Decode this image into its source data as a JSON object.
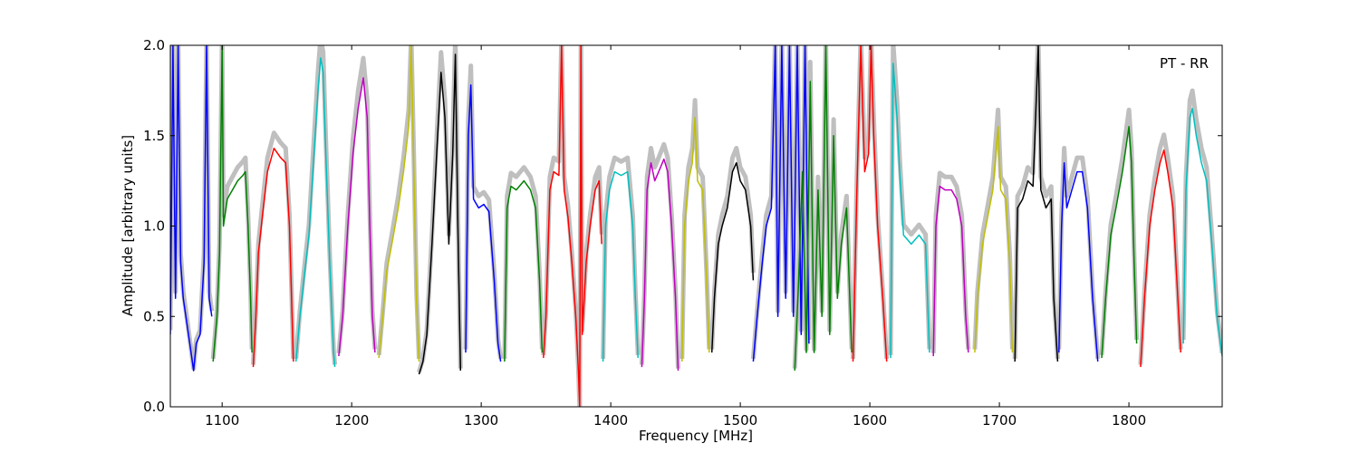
{
  "chart_data": {
    "type": "line",
    "title": "",
    "annotation": "PT - RR",
    "xlabel": "Frequency [MHz]",
    "ylabel": "Amplitude [arbitrary units]",
    "xlim": [
      1060,
      1872
    ],
    "ylim": [
      0.0,
      2.0
    ],
    "xticks": [
      1100,
      1200,
      1300,
      1400,
      1500,
      1600,
      1700,
      1800
    ],
    "yticks": [
      0.0,
      0.5,
      1.0,
      1.5,
      2.0
    ],
    "grid": false,
    "legend": "none",
    "background_series": {
      "color": "#bfbfbf",
      "description_visible": false
    },
    "series": [
      {
        "color": "#0000ff",
        "points": [
          [
            1060,
            0.4
          ],
          [
            1062,
            2.0
          ],
          [
            1064,
            0.6
          ],
          [
            1066,
            2.0
          ],
          [
            1068,
            0.8
          ],
          [
            1070,
            0.6
          ],
          [
            1073,
            0.45
          ],
          [
            1076,
            0.3
          ],
          [
            1078,
            0.2
          ],
          [
            1080,
            0.35
          ],
          [
            1083,
            0.4
          ],
          [
            1086,
            0.8
          ],
          [
            1088,
            2.0
          ],
          [
            1090,
            0.6
          ],
          [
            1092,
            0.5
          ]
        ]
      },
      {
        "color": "#008000",
        "points": [
          [
            1093,
            0.25
          ],
          [
            1096,
            0.5
          ],
          [
            1098,
            0.85
          ],
          [
            1100,
            2.0
          ],
          [
            1101,
            1.0
          ],
          [
            1104,
            1.15
          ],
          [
            1108,
            1.2
          ],
          [
            1112,
            1.25
          ],
          [
            1116,
            1.28
          ],
          [
            1118,
            1.3
          ],
          [
            1120,
            1.0
          ],
          [
            1122,
            0.6
          ],
          [
            1123,
            0.3
          ]
        ]
      },
      {
        "color": "#ff0000",
        "points": [
          [
            1124,
            0.22
          ],
          [
            1126,
            0.5
          ],
          [
            1128,
            0.85
          ],
          [
            1131,
            1.05
          ],
          [
            1135,
            1.3
          ],
          [
            1140,
            1.43
          ],
          [
            1145,
            1.38
          ],
          [
            1149,
            1.35
          ],
          [
            1152,
            1.0
          ],
          [
            1154,
            0.5
          ],
          [
            1155,
            0.25
          ]
        ]
      },
      {
        "color": "#00bfbf",
        "points": [
          [
            1157,
            0.25
          ],
          [
            1160,
            0.5
          ],
          [
            1163,
            0.7
          ],
          [
            1167,
            0.95
          ],
          [
            1170,
            1.3
          ],
          [
            1174,
            1.75
          ],
          [
            1176,
            1.93
          ],
          [
            1178,
            1.85
          ],
          [
            1180,
            1.4
          ],
          [
            1183,
            0.8
          ],
          [
            1186,
            0.3
          ],
          [
            1187,
            0.22
          ]
        ]
      },
      {
        "color": "#bf00bf",
        "points": [
          [
            1190,
            0.28
          ],
          [
            1193,
            0.5
          ],
          [
            1197,
            1.0
          ],
          [
            1201,
            1.4
          ],
          [
            1205,
            1.65
          ],
          [
            1209,
            1.82
          ],
          [
            1212,
            1.6
          ],
          [
            1214,
            1.0
          ],
          [
            1216,
            0.5
          ],
          [
            1218,
            0.3
          ]
        ]
      },
      {
        "color": "#bfbf00",
        "points": [
          [
            1221,
            0.27
          ],
          [
            1224,
            0.5
          ],
          [
            1227,
            0.75
          ],
          [
            1231,
            0.9
          ],
          [
            1236,
            1.1
          ],
          [
            1240,
            1.3
          ],
          [
            1244,
            1.55
          ],
          [
            1246,
            2.0
          ],
          [
            1248,
            1.3
          ],
          [
            1250,
            0.6
          ],
          [
            1252,
            0.25
          ]
        ]
      },
      {
        "color": "#000000",
        "points": [
          [
            1252,
            0.18
          ],
          [
            1255,
            0.25
          ],
          [
            1258,
            0.4
          ],
          [
            1262,
            0.9
          ],
          [
            1266,
            1.45
          ],
          [
            1269,
            1.85
          ],
          [
            1272,
            1.6
          ],
          [
            1275,
            0.9
          ],
          [
            1278,
            1.4
          ],
          [
            1280,
            1.95
          ],
          [
            1282,
            1.0
          ],
          [
            1284,
            0.2
          ]
        ]
      },
      {
        "color": "#0000ff",
        "points": [
          [
            1288,
            0.3
          ],
          [
            1290,
            1.5
          ],
          [
            1292,
            1.78
          ],
          [
            1294,
            1.15
          ],
          [
            1298,
            1.1
          ],
          [
            1302,
            1.12
          ],
          [
            1306,
            1.08
          ],
          [
            1310,
            0.7
          ],
          [
            1313,
            0.35
          ],
          [
            1315,
            0.25
          ]
        ]
      },
      {
        "color": "#008000",
        "points": [
          [
            1318,
            0.25
          ],
          [
            1320,
            1.1
          ],
          [
            1323,
            1.22
          ],
          [
            1327,
            1.2
          ],
          [
            1333,
            1.25
          ],
          [
            1338,
            1.2
          ],
          [
            1342,
            1.1
          ],
          [
            1345,
            0.7
          ],
          [
            1347,
            0.3
          ]
        ]
      },
      {
        "color": "#ff0000",
        "points": [
          [
            1348,
            0.27
          ],
          [
            1350,
            0.5
          ],
          [
            1353,
            1.2
          ],
          [
            1356,
            1.3
          ],
          [
            1360,
            1.28
          ],
          [
            1362,
            2.0
          ],
          [
            1364,
            1.2
          ],
          [
            1367,
            1.05
          ],
          [
            1370,
            0.8
          ],
          [
            1373,
            0.5
          ],
          [
            1375,
            0.2
          ],
          [
            1376,
            0.0
          ],
          [
            1377,
            2.0
          ],
          [
            1378,
            0.4
          ],
          [
            1381,
            0.8
          ],
          [
            1384,
            1.0
          ],
          [
            1388,
            1.2
          ],
          [
            1391,
            1.25
          ],
          [
            1393,
            0.9
          ]
        ]
      },
      {
        "color": "#00bfbf",
        "points": [
          [
            1394,
            0.25
          ],
          [
            1396,
            1.0
          ],
          [
            1399,
            1.2
          ],
          [
            1403,
            1.3
          ],
          [
            1408,
            1.28
          ],
          [
            1413,
            1.3
          ],
          [
            1417,
            1.0
          ],
          [
            1419,
            0.6
          ],
          [
            1421,
            0.27
          ]
        ]
      },
      {
        "color": "#bf00bf",
        "points": [
          [
            1424,
            0.22
          ],
          [
            1426,
            0.6
          ],
          [
            1428,
            1.2
          ],
          [
            1431,
            1.35
          ],
          [
            1434,
            1.25
          ],
          [
            1437,
            1.3
          ],
          [
            1441,
            1.37
          ],
          [
            1444,
            1.3
          ],
          [
            1447,
            1.0
          ],
          [
            1450,
            0.6
          ],
          [
            1452,
            0.2
          ]
        ]
      },
      {
        "color": "#bfbf00",
        "points": [
          [
            1455,
            0.25
          ],
          [
            1457,
            1.0
          ],
          [
            1460,
            1.25
          ],
          [
            1463,
            1.35
          ],
          [
            1465,
            1.6
          ],
          [
            1467,
            1.25
          ],
          [
            1471,
            1.2
          ],
          [
            1474,
            0.7
          ],
          [
            1476,
            0.3
          ]
        ]
      },
      {
        "color": "#000000",
        "points": [
          [
            1478,
            0.3
          ],
          [
            1480,
            0.6
          ],
          [
            1483,
            0.9
          ],
          [
            1486,
            1.0
          ],
          [
            1490,
            1.1
          ],
          [
            1494,
            1.3
          ],
          [
            1497,
            1.35
          ],
          [
            1500,
            1.25
          ],
          [
            1504,
            1.2
          ],
          [
            1508,
            1.0
          ],
          [
            1510,
            0.7
          ]
        ]
      },
      {
        "color": "#0000ff",
        "points": [
          [
            1510,
            0.25
          ],
          [
            1513,
            0.5
          ],
          [
            1517,
            0.8
          ],
          [
            1520,
            1.0
          ],
          [
            1524,
            1.1
          ],
          [
            1527,
            2.0
          ],
          [
            1529,
            0.5
          ],
          [
            1532,
            2.0
          ],
          [
            1535,
            0.6
          ],
          [
            1538,
            2.0
          ],
          [
            1541,
            0.5
          ],
          [
            1544,
            2.0
          ],
          [
            1547,
            0.4
          ],
          [
            1550,
            2.0
          ],
          [
            1553,
            0.35
          ]
        ]
      },
      {
        "color": "#008000",
        "points": [
          [
            1542,
            0.2
          ],
          [
            1545,
            0.7
          ],
          [
            1548,
            1.3
          ],
          [
            1551,
            0.3
          ],
          [
            1554,
            1.8
          ],
          [
            1557,
            0.3
          ],
          [
            1560,
            1.2
          ],
          [
            1563,
            0.5
          ],
          [
            1566,
            2.0
          ],
          [
            1569,
            0.4
          ],
          [
            1572,
            1.5
          ],
          [
            1575,
            0.6
          ],
          [
            1578,
            0.9
          ],
          [
            1582,
            1.1
          ],
          [
            1586,
            0.3
          ]
        ]
      },
      {
        "color": "#ff0000",
        "points": [
          [
            1587,
            0.25
          ],
          [
            1590,
            1.2
          ],
          [
            1593,
            2.0
          ],
          [
            1596,
            1.3
          ],
          [
            1599,
            1.4
          ],
          [
            1601,
            2.0
          ],
          [
            1603,
            1.5
          ],
          [
            1606,
            1.0
          ],
          [
            1610,
            0.6
          ],
          [
            1613,
            0.25
          ]
        ]
      },
      {
        "color": "#00bfbf",
        "points": [
          [
            1616,
            0.27
          ],
          [
            1618,
            1.9
          ],
          [
            1621,
            1.6
          ],
          [
            1623,
            1.3
          ],
          [
            1626,
            0.95
          ],
          [
            1632,
            0.9
          ],
          [
            1638,
            0.95
          ],
          [
            1643,
            0.9
          ],
          [
            1646,
            0.3
          ]
        ]
      },
      {
        "color": "#bf00bf",
        "points": [
          [
            1649,
            0.28
          ],
          [
            1651,
            1.0
          ],
          [
            1654,
            1.22
          ],
          [
            1658,
            1.2
          ],
          [
            1663,
            1.2
          ],
          [
            1667,
            1.15
          ],
          [
            1671,
            1.0
          ],
          [
            1674,
            0.5
          ],
          [
            1676,
            0.3
          ]
        ]
      },
      {
        "color": "#bfbf00",
        "points": [
          [
            1681,
            0.3
          ],
          [
            1683,
            0.6
          ],
          [
            1687,
            0.9
          ],
          [
            1691,
            1.05
          ],
          [
            1695,
            1.2
          ],
          [
            1699,
            1.55
          ],
          [
            1701,
            1.2
          ],
          [
            1705,
            1.15
          ],
          [
            1708,
            0.8
          ],
          [
            1710,
            0.3
          ]
        ]
      },
      {
        "color": "#000000",
        "points": [
          [
            1712,
            0.25
          ],
          [
            1714,
            1.1
          ],
          [
            1718,
            1.15
          ],
          [
            1722,
            1.25
          ],
          [
            1726,
            1.22
          ],
          [
            1730,
            2.0
          ],
          [
            1732,
            1.2
          ],
          [
            1736,
            1.1
          ],
          [
            1740,
            1.15
          ],
          [
            1742,
            0.6
          ],
          [
            1745,
            0.25
          ]
        ]
      },
      {
        "color": "#0000ff",
        "points": [
          [
            1746,
            0.3
          ],
          [
            1748,
            1.0
          ],
          [
            1750,
            1.35
          ],
          [
            1752,
            1.1
          ],
          [
            1756,
            1.2
          ],
          [
            1760,
            1.3
          ],
          [
            1764,
            1.3
          ],
          [
            1768,
            1.1
          ],
          [
            1772,
            0.6
          ],
          [
            1776,
            0.25
          ]
        ]
      },
      {
        "color": "#008000",
        "points": [
          [
            1779,
            0.27
          ],
          [
            1782,
            0.6
          ],
          [
            1786,
            0.95
          ],
          [
            1790,
            1.1
          ],
          [
            1795,
            1.3
          ],
          [
            1800,
            1.55
          ],
          [
            1802,
            1.35
          ],
          [
            1804,
            0.8
          ],
          [
            1806,
            0.35
          ]
        ]
      },
      {
        "color": "#ff0000",
        "points": [
          [
            1809,
            0.22
          ],
          [
            1812,
            0.6
          ],
          [
            1816,
            1.0
          ],
          [
            1820,
            1.2
          ],
          [
            1824,
            1.35
          ],
          [
            1827,
            1.42
          ],
          [
            1830,
            1.3
          ],
          [
            1834,
            1.1
          ],
          [
            1837,
            0.7
          ],
          [
            1840,
            0.3
          ]
        ]
      },
      {
        "color": "#00bfbf",
        "points": [
          [
            1842,
            0.35
          ],
          [
            1844,
            1.2
          ],
          [
            1847,
            1.6
          ],
          [
            1849,
            1.65
          ],
          [
            1852,
            1.5
          ],
          [
            1856,
            1.35
          ],
          [
            1860,
            1.25
          ],
          [
            1864,
            0.9
          ],
          [
            1868,
            0.5
          ],
          [
            1872,
            0.28
          ]
        ]
      }
    ]
  }
}
